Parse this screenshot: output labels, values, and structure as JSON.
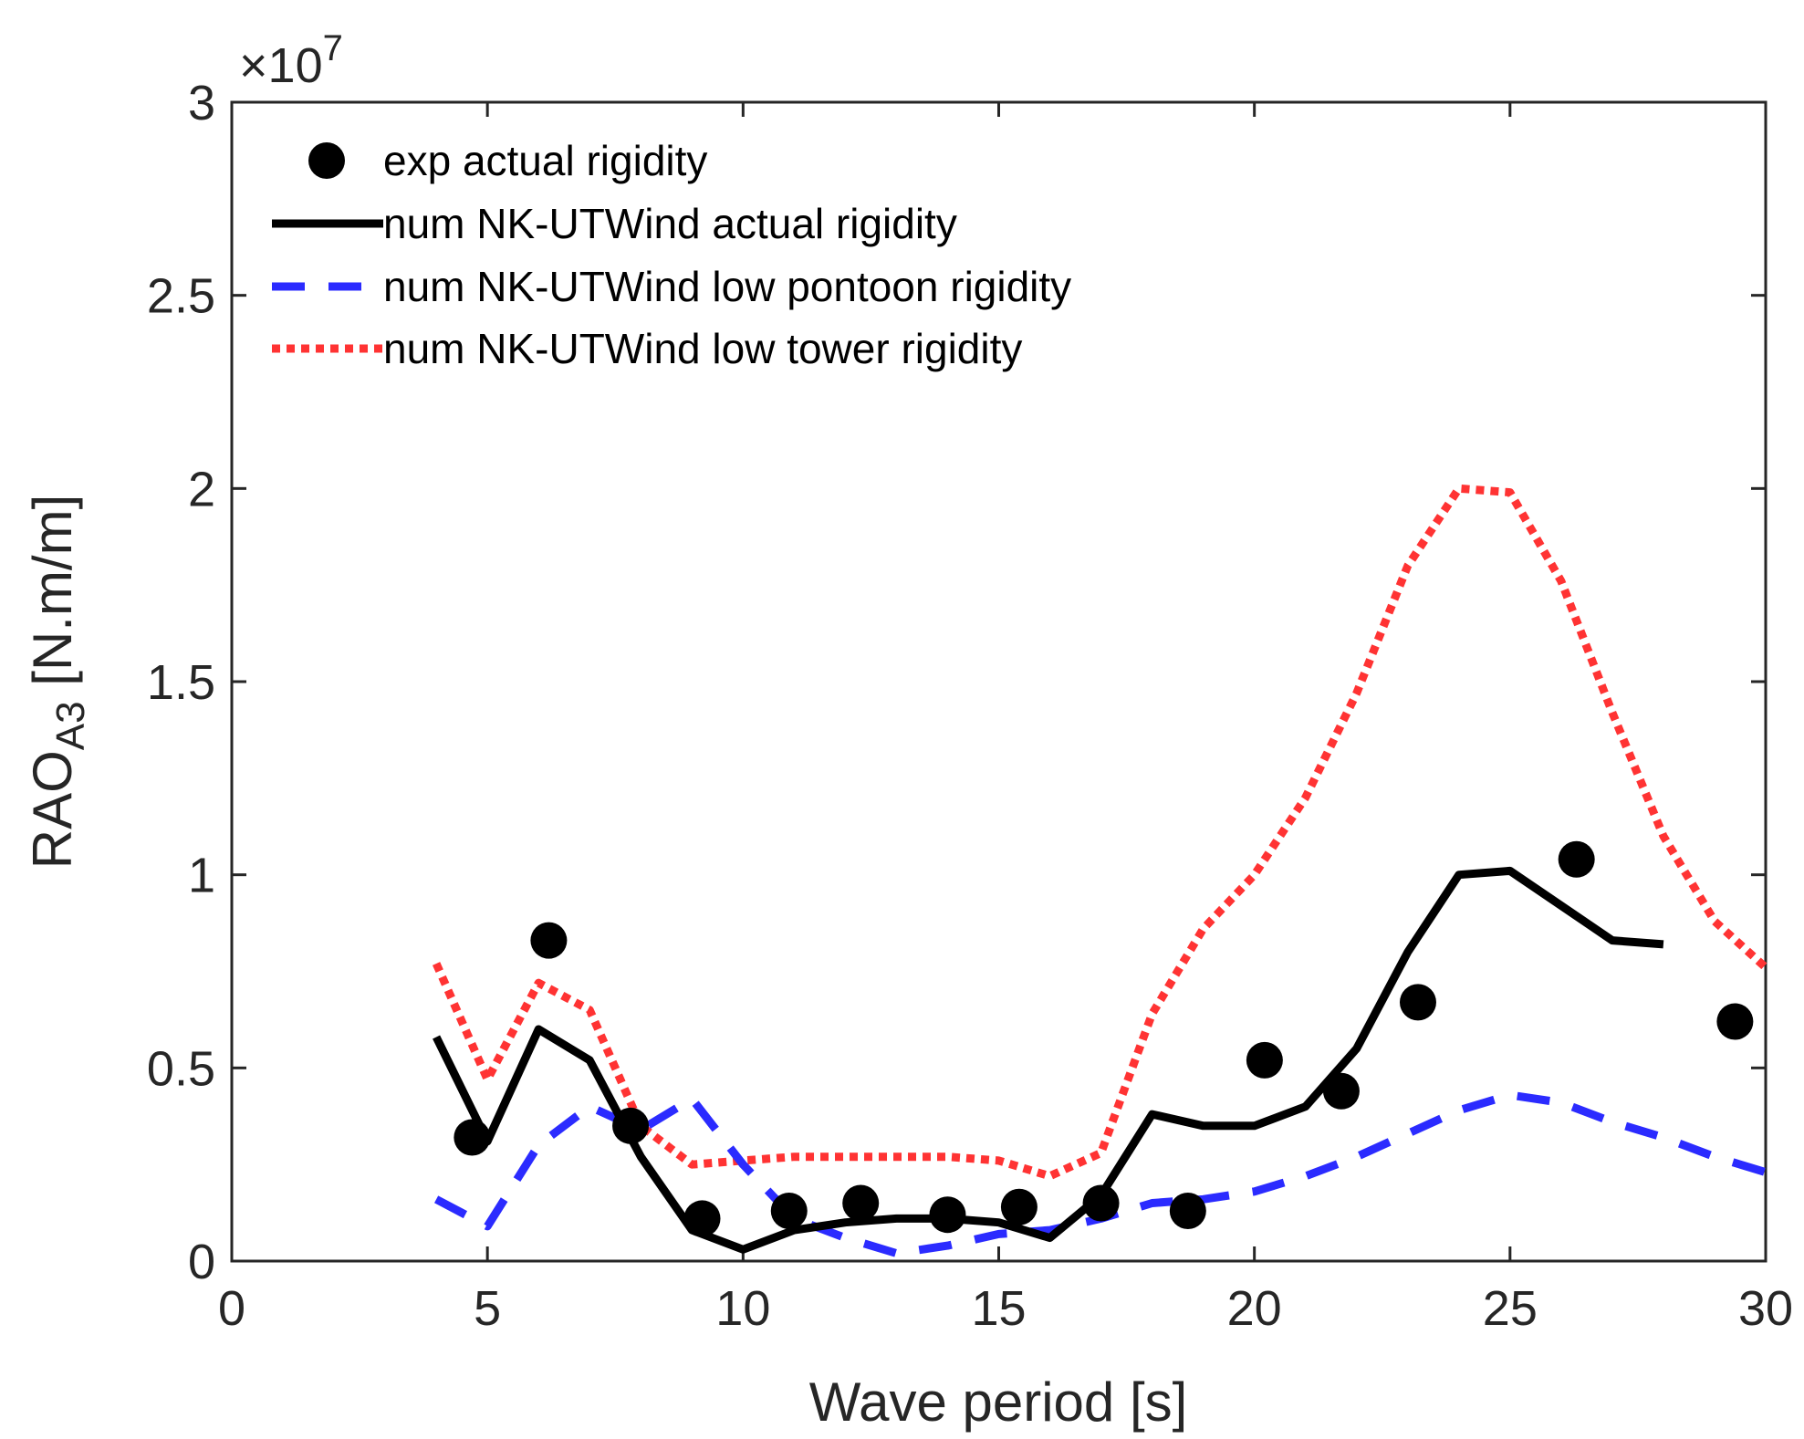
{
  "chart_data": {
    "type": "line",
    "xlabel": "Wave period [s]",
    "ylabel_main": "RAO",
    "ylabel_sub": "A3",
    "ylabel_unit": " [N.m/m]",
    "exponent_prefix": "×10",
    "exponent_power": "7",
    "xlim": [
      0,
      30
    ],
    "ylim": [
      0,
      3
    ],
    "x_ticks": [
      0,
      5,
      10,
      15,
      20,
      25,
      30
    ],
    "x_tick_labels": [
      "0",
      "5",
      "10",
      "15",
      "20",
      "25",
      "30"
    ],
    "y_ticks": [
      0,
      0.5,
      1,
      1.5,
      2,
      2.5,
      3
    ],
    "y_tick_labels": [
      "0",
      "0.5",
      "1",
      "1.5",
      "2",
      "2.5",
      "3"
    ],
    "grid": false,
    "legend_position": "top-left",
    "series": [
      {
        "name": "exp actual rigidity",
        "style": "markers",
        "color": "#000000",
        "x": [
          4.7,
          6.2,
          7.8,
          9.2,
          10.9,
          12.3,
          14.0,
          15.4,
          17.0,
          18.7,
          20.2,
          21.7,
          23.2,
          26.3,
          29.4
        ],
        "y": [
          0.32,
          0.83,
          0.35,
          0.11,
          0.13,
          0.15,
          0.12,
          0.14,
          0.15,
          0.13,
          0.52,
          0.44,
          0.67,
          1.04,
          0.62
        ]
      },
      {
        "name": "num NK-UTWind actual rigidity",
        "style": "solid",
        "color": "#000000",
        "x": [
          4,
          5,
          6,
          7,
          8,
          9,
          10,
          11,
          12,
          13,
          14,
          15,
          16,
          17,
          18,
          19,
          20,
          21,
          22,
          23,
          24,
          25,
          26,
          27,
          28
        ],
        "y": [
          0.58,
          0.31,
          0.6,
          0.52,
          0.27,
          0.08,
          0.03,
          0.08,
          0.1,
          0.11,
          0.11,
          0.1,
          0.06,
          0.17,
          0.38,
          0.35,
          0.35,
          0.4,
          0.55,
          0.8,
          1.0,
          1.01,
          0.92,
          0.83,
          0.82
        ]
      },
      {
        "name": "num NK-UTWind low pontoon rigidity",
        "style": "dashed",
        "color": "#2b2bff",
        "x": [
          4,
          5,
          6,
          7,
          8,
          9,
          10,
          11,
          12,
          13,
          14,
          15,
          16,
          17,
          18,
          19,
          20,
          21,
          22,
          23,
          24,
          25,
          26,
          27,
          28,
          29,
          30
        ],
        "y": [
          0.16,
          0.09,
          0.3,
          0.4,
          0.34,
          0.42,
          0.25,
          0.11,
          0.06,
          0.02,
          0.04,
          0.07,
          0.08,
          0.11,
          0.15,
          0.16,
          0.18,
          0.22,
          0.27,
          0.33,
          0.39,
          0.43,
          0.41,
          0.36,
          0.32,
          0.27,
          0.23
        ]
      },
      {
        "name": "num NK-UTWind low tower rigidity",
        "style": "dotted",
        "color": "#ff3333",
        "x": [
          4,
          5,
          6,
          7,
          8,
          9,
          10,
          11,
          12,
          13,
          14,
          15,
          16,
          17,
          18,
          19,
          20,
          21,
          22,
          23,
          24,
          25,
          26,
          27,
          28,
          29,
          30
        ],
        "y": [
          0.77,
          0.47,
          0.72,
          0.65,
          0.35,
          0.25,
          0.26,
          0.27,
          0.27,
          0.27,
          0.27,
          0.26,
          0.22,
          0.28,
          0.64,
          0.86,
          1.0,
          1.2,
          1.47,
          1.8,
          2.0,
          1.99,
          1.76,
          1.42,
          1.1,
          0.88,
          0.76
        ]
      }
    ]
  }
}
